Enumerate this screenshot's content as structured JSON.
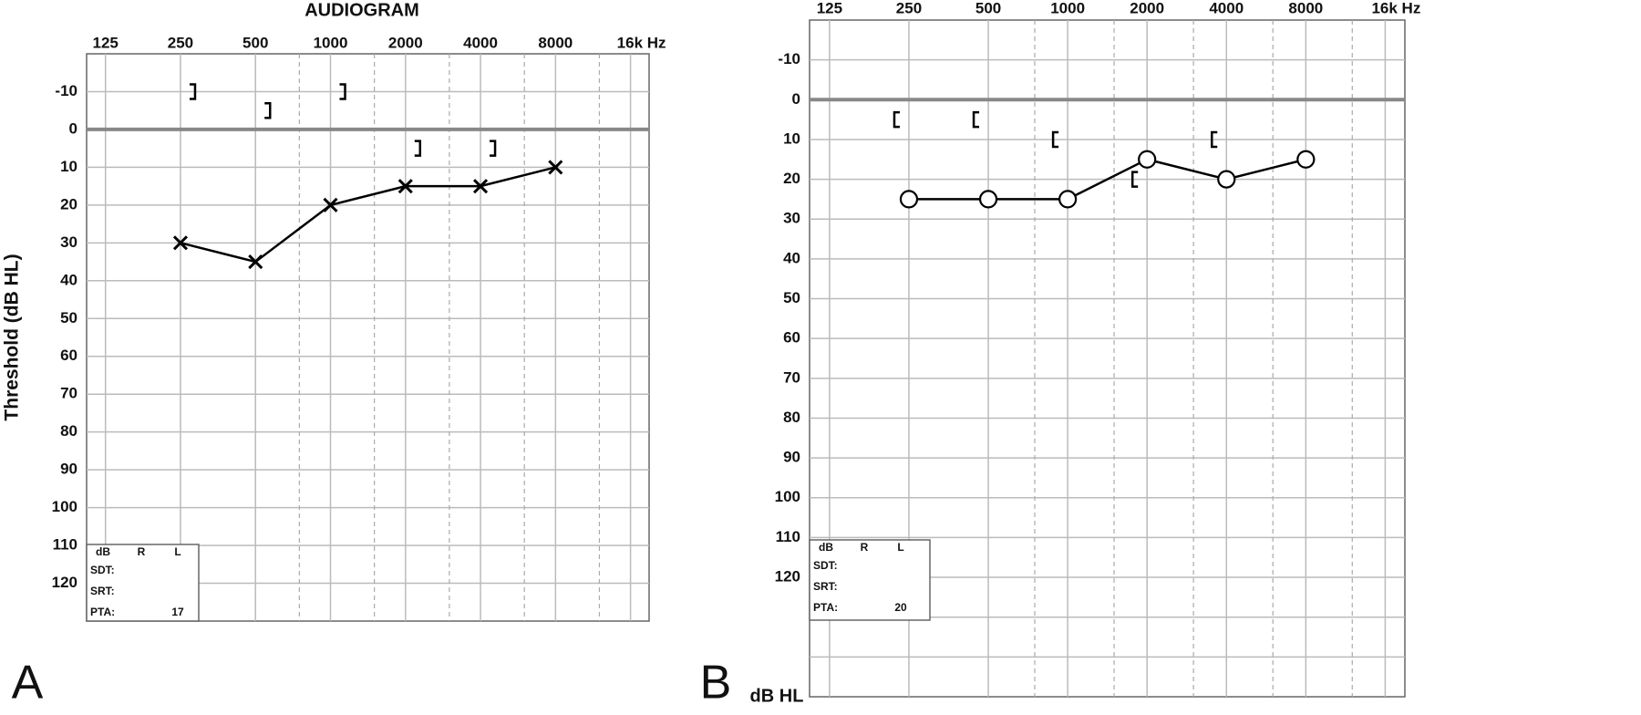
{
  "chart_data": [
    {
      "type": "audiogram",
      "panel": "A",
      "title": "AUDIOGRAM",
      "ylabel": "Threshold (dB HL)",
      "xscale": "log",
      "xlim": [
        105,
        19000
      ],
      "xticks": [
        125,
        250,
        500,
        1000,
        2000,
        4000,
        8000,
        {
          "value": 16000,
          "label": "16k Hz"
        }
      ],
      "xminor": [
        750,
        1500,
        3000,
        6000,
        12000
      ],
      "ylim": [
        -20,
        130
      ],
      "y_inverted": true,
      "yticks": [
        -10,
        0,
        10,
        20,
        30,
        40,
        50,
        60,
        70,
        80,
        90,
        100,
        110,
        120
      ],
      "grid": true,
      "reference_line": 0,
      "x": [
        250,
        500,
        1000,
        2000,
        4000,
        8000
      ],
      "series": [
        {
          "marker": "x",
          "connected": true,
          "color": "#000000",
          "values": [
            30,
            35,
            20,
            15,
            15,
            10
          ]
        },
        {
          "marker": "]",
          "connected": false,
          "color": "#000000",
          "values": [
            -10,
            -5,
            -10,
            5,
            5,
            null
          ]
        }
      ],
      "summary_table": {
        "header": [
          "dB",
          "R",
          "L"
        ],
        "rows": [
          {
            "label": "SDT:"
          },
          {
            "label": "SRT:"
          },
          {
            "label": "PTA:",
            "L": 17
          }
        ]
      }
    },
    {
      "type": "audiogram",
      "panel": "B",
      "ylabel": "dB HL",
      "xscale": "log",
      "xlim": [
        105,
        19000
      ],
      "xticks": [
        125,
        250,
        500,
        1000,
        2000,
        4000,
        8000,
        {
          "value": 16000,
          "label": "16k Hz"
        }
      ],
      "xminor": [
        750,
        1500,
        3000,
        6000,
        12000
      ],
      "ylim": [
        -20,
        150
      ],
      "y_inverted": true,
      "yticks": [
        -10,
        0,
        10,
        20,
        30,
        40,
        50,
        60,
        70,
        80,
        90,
        100,
        110,
        120
      ],
      "yminor": [
        130,
        140
      ],
      "grid": true,
      "reference_line": 0,
      "x": [
        250,
        500,
        1000,
        2000,
        4000,
        8000
      ],
      "series": [
        {
          "marker": "o",
          "connected": true,
          "color": "#000000",
          "values": [
            25,
            25,
            25,
            15,
            20,
            15
          ]
        },
        {
          "marker": "[",
          "connected": false,
          "color": "#000000",
          "values": [
            5,
            5,
            10,
            20,
            10,
            null
          ]
        }
      ],
      "summary_table": {
        "header": [
          "dB",
          "R",
          "L"
        ],
        "rows": [
          {
            "label": "SDT:"
          },
          {
            "label": "SRT:"
          },
          {
            "label": "PTA:",
            "L": 20
          }
        ]
      }
    }
  ]
}
